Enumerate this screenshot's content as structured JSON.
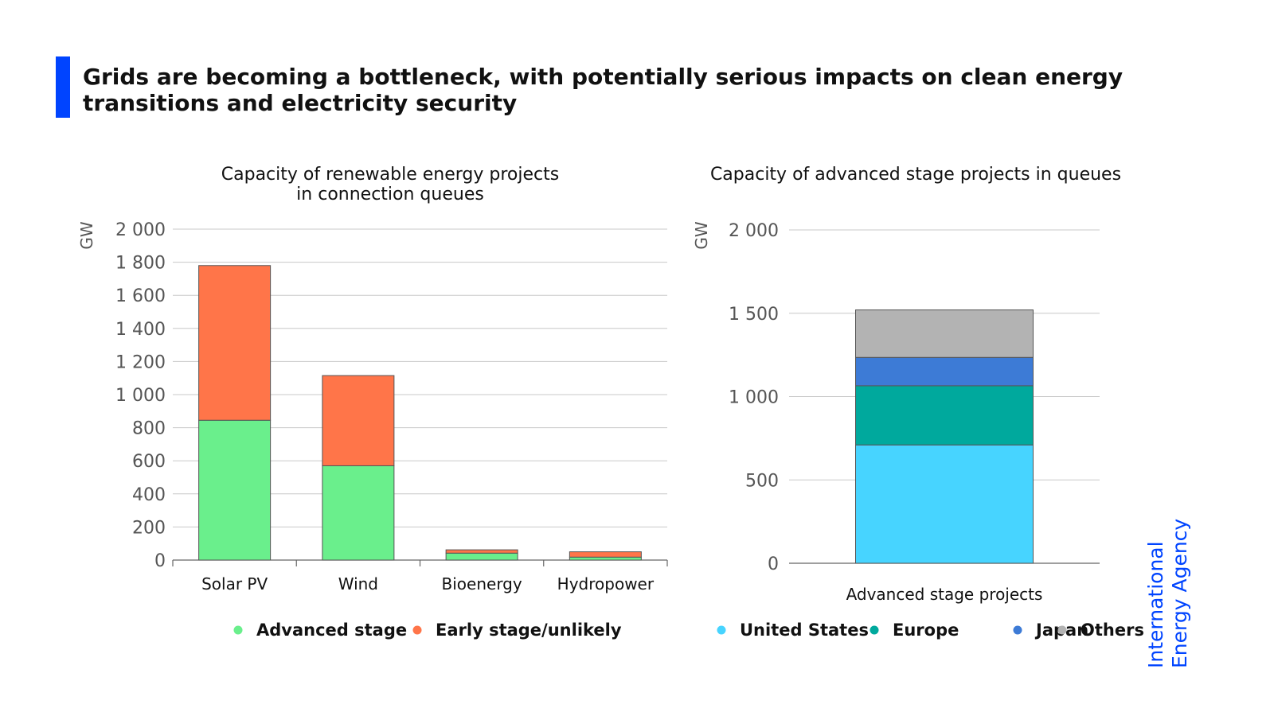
{
  "header": {
    "title": "Grids are becoming a bottleneck, with potentially serious impacts on clean energy transitions and electricity security",
    "accent_color": "#0044ff"
  },
  "brand": {
    "line1": "International",
    "line2": "Energy Agency"
  },
  "chart_data": [
    {
      "type": "bar",
      "stacked": true,
      "title": "Capacity of renewable energy projects in connection queues",
      "title_lines": [
        "Capacity of renewable energy projects",
        "in connection queues"
      ],
      "ylabel": "GW",
      "ylim": [
        0,
        2000
      ],
      "yticks": [
        0,
        200,
        400,
        600,
        800,
        1000,
        1200,
        1400,
        1600,
        1800,
        2000
      ],
      "ytick_labels": [
        "0",
        "200",
        "400",
        "600",
        "800",
        "1 000",
        "1 200",
        "1 400",
        "1 600",
        "1 800",
        "2 000"
      ],
      "categories": [
        "Solar PV",
        "Wind",
        "Bioenergy",
        "Hydropower"
      ],
      "series": [
        {
          "name": "Advanced stage",
          "color": "#6aef8c",
          "values": [
            845,
            570,
            42,
            18
          ]
        },
        {
          "name": "Early stage/unlikely",
          "color": "#ff7549",
          "values": [
            935,
            545,
            20,
            32
          ]
        }
      ],
      "grid": true,
      "legend": "bottom"
    },
    {
      "type": "bar",
      "stacked": true,
      "title": "Capacity of advanced stage projects in queues",
      "title_lines": [
        "Capacity of advanced stage projects in queues"
      ],
      "ylabel": "GW",
      "ylim": [
        0,
        2000
      ],
      "yticks": [
        0,
        500,
        1000,
        1500,
        2000
      ],
      "ytick_labels": [
        "0",
        "500",
        "1 000",
        "1 500",
        "2 000"
      ],
      "categories": [
        "Advanced stage projects"
      ],
      "series": [
        {
          "name": "United States",
          "color": "#47d4ff",
          "values": [
            710
          ]
        },
        {
          "name": "Europe",
          "color": "#00a99d",
          "values": [
            355
          ]
        },
        {
          "name": "Japan",
          "color": "#3d7bd6",
          "values": [
            170
          ]
        },
        {
          "name": "Others",
          "color": "#b3b3b3",
          "values": [
            285
          ]
        }
      ],
      "grid": true,
      "legend": "bottom"
    }
  ]
}
